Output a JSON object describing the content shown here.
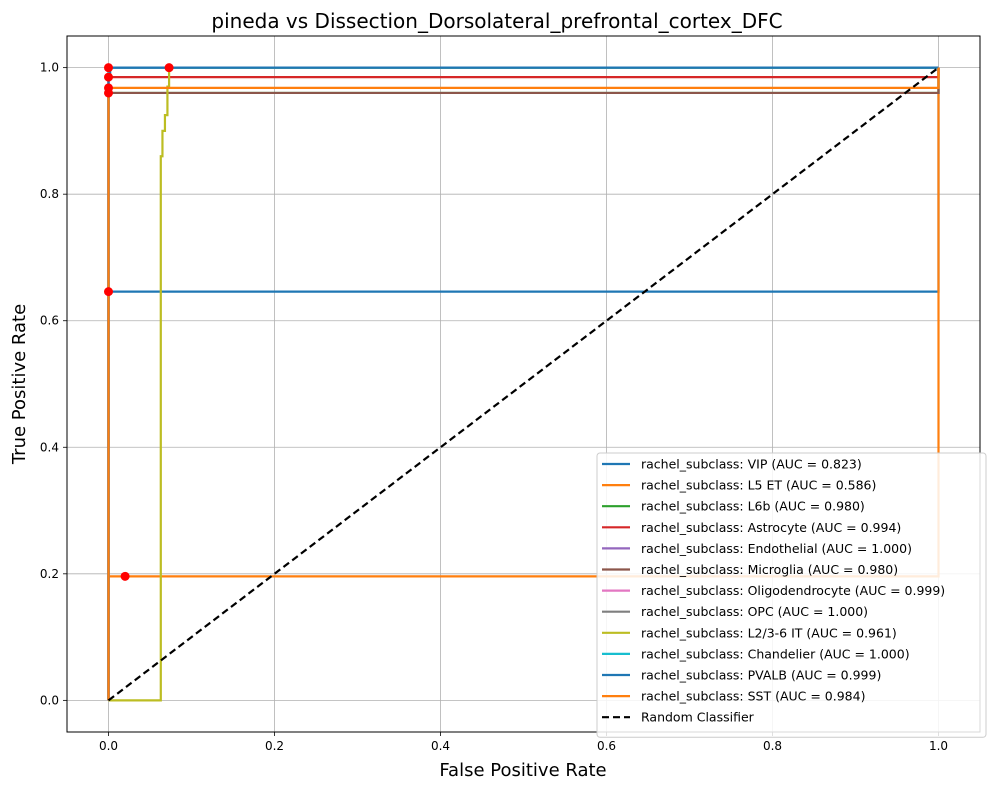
{
  "chart_data": {
    "type": "line",
    "title": "pineda vs Dissection_Dorsolateral_prefrontal_cortex_DFC",
    "xlabel": "False Positive Rate",
    "ylabel": "True Positive Rate",
    "xlim": [
      -0.05,
      1.05
    ],
    "ylim": [
      -0.05,
      1.05
    ],
    "xticks": [
      "0.0",
      "0.2",
      "0.4",
      "0.6",
      "0.8",
      "1.0"
    ],
    "yticks": [
      "0.0",
      "0.2",
      "0.4",
      "0.6",
      "0.8",
      "1.0"
    ],
    "grid": true,
    "legend_position": "lower-right",
    "series": [
      {
        "name": "rachel_subclass: VIP (AUC = 0.823)",
        "color": "#1f77b4",
        "x": [
          0,
          0,
          1,
          1
        ],
        "y": [
          0,
          0.646,
          0.646,
          1
        ]
      },
      {
        "name": "rachel_subclass: L5 ET (AUC = 0.586)",
        "color": "#ff7f0e",
        "x": [
          0,
          0,
          0.018,
          1,
          1
        ],
        "y": [
          0,
          0.196,
          0.196,
          0.196,
          1
        ]
      },
      {
        "name": "rachel_subclass: L6b (AUC = 0.980)",
        "color": "#2ca02c",
        "x": [
          0,
          0,
          1,
          1
        ],
        "y": [
          0,
          0.96,
          0.96,
          1
        ]
      },
      {
        "name": "rachel_subclass: Astrocyte (AUC = 0.994)",
        "color": "#d62728",
        "x": [
          0,
          0,
          1,
          1
        ],
        "y": [
          0,
          0.985,
          0.985,
          1
        ]
      },
      {
        "name": "rachel_subclass: Endothelial (AUC = 1.000)",
        "color": "#9467bd",
        "x": [
          0,
          0,
          1
        ],
        "y": [
          0,
          1,
          1
        ]
      },
      {
        "name": "rachel_subclass: Microglia (AUC = 0.980)",
        "color": "#8c564b",
        "x": [
          0,
          0,
          1,
          1
        ],
        "y": [
          0,
          0.96,
          0.96,
          1
        ]
      },
      {
        "name": "rachel_subclass: Oligodendrocyte (AUC = 0.999)",
        "color": "#e377c2",
        "x": [
          0,
          0,
          0.002,
          1
        ],
        "y": [
          0,
          0.997,
          1,
          1
        ]
      },
      {
        "name": "rachel_subclass: OPC (AUC = 1.000)",
        "color": "#7f7f7f",
        "x": [
          0,
          0,
          1
        ],
        "y": [
          0,
          1,
          1
        ]
      },
      {
        "name": "rachel_subclass: L2/3-6 IT (AUC = 0.961)",
        "color": "#bcbd22",
        "x": [
          0,
          0.063,
          0.063,
          0.065,
          0.065,
          0.068,
          0.068,
          0.071,
          0.071,
          0.073,
          0.073,
          1
        ],
        "y": [
          0,
          0,
          0.86,
          0.86,
          0.9,
          0.9,
          0.925,
          0.925,
          0.97,
          0.97,
          1,
          1
        ]
      },
      {
        "name": "rachel_subclass: Chandelier (AUC = 1.000)",
        "color": "#17becf",
        "x": [
          0,
          0,
          1
        ],
        "y": [
          0,
          1,
          1
        ]
      },
      {
        "name": "rachel_subclass: PVALB (AUC = 0.999)",
        "color": "#1f77b4",
        "x": [
          0,
          0,
          0.002,
          0.002,
          1
        ],
        "y": [
          0,
          0.985,
          0.985,
          1,
          1
        ]
      },
      {
        "name": "rachel_subclass: SST (AUC = 0.984)",
        "color": "#ff7f0e",
        "x": [
          0,
          0,
          0.002,
          0.002,
          1,
          1
        ],
        "y": [
          0,
          0.96,
          0.96,
          0.968,
          0.968,
          1
        ]
      },
      {
        "name": "Random Classifier",
        "color": "#000000",
        "dashed": true,
        "x": [
          0,
          1
        ],
        "y": [
          0,
          1
        ]
      }
    ],
    "threshold_points": [
      {
        "x": 0.0,
        "y": 1.0
      },
      {
        "x": 0.073,
        "y": 1.0
      },
      {
        "x": 0.0,
        "y": 0.985
      },
      {
        "x": 0.0,
        "y": 0.968
      },
      {
        "x": 0.0,
        "y": 0.96
      },
      {
        "x": 0.0,
        "y": 0.646
      },
      {
        "x": 0.02,
        "y": 0.196
      }
    ],
    "threshold_point_color": "#ff0000"
  }
}
